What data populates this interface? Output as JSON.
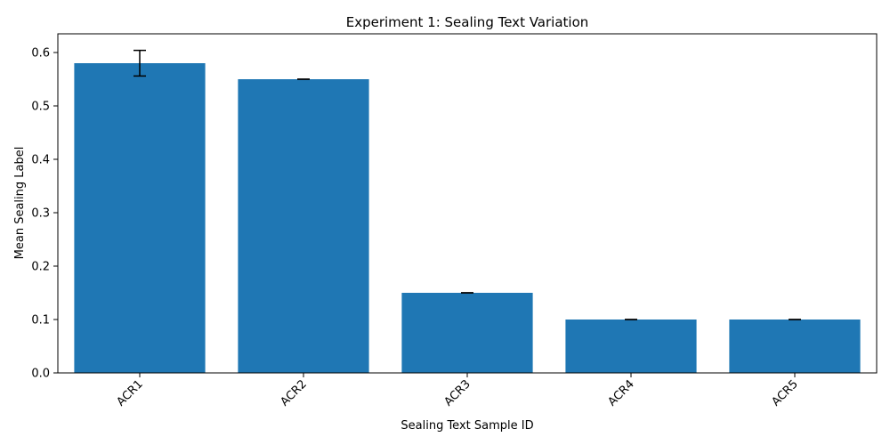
{
  "chart_data": {
    "type": "bar",
    "title": "Experiment 1: Sealing Text Variation",
    "xlabel": "Sealing Text Sample ID",
    "ylabel": "Mean Sealing Label",
    "categories": [
      "ACR1",
      "ACR2",
      "ACR3",
      "ACR4",
      "ACR5"
    ],
    "values": [
      0.58,
      0.55,
      0.15,
      0.1,
      0.1
    ],
    "errors": [
      0.024,
      0.0,
      0.0,
      0.0,
      0.0
    ],
    "ylim": [
      0,
      0.635
    ],
    "yticks": [
      0.0,
      0.1,
      0.2,
      0.3,
      0.4,
      0.5,
      0.6
    ],
    "ytick_labels": [
      "0.0",
      "0.1",
      "0.2",
      "0.3",
      "0.4",
      "0.5",
      "0.6"
    ],
    "grid": false,
    "legend": "none",
    "bar_color": "#1f77b4",
    "error_color": "#000000"
  }
}
